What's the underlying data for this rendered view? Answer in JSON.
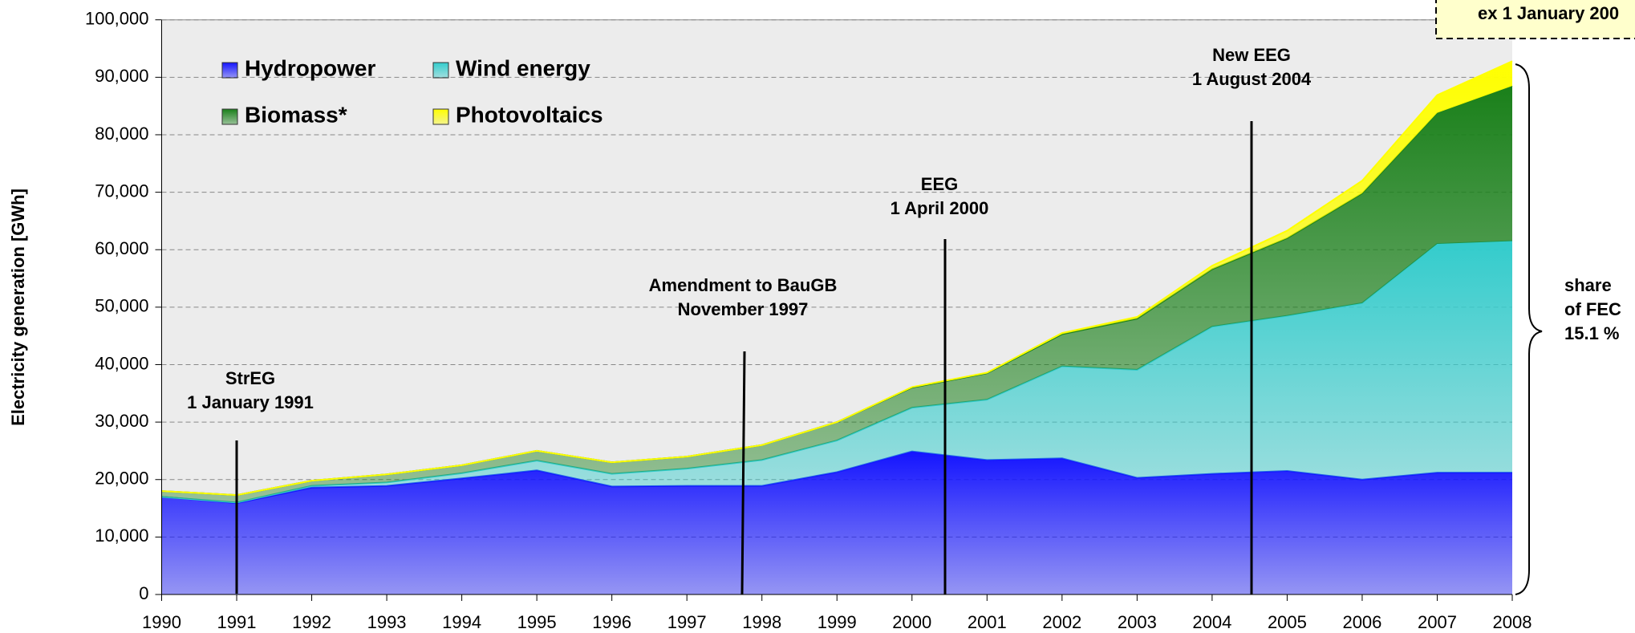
{
  "chart_data": {
    "type": "stacked-area",
    "y_label": "Electricity generation [GWh]",
    "x": [
      1990,
      1991,
      1992,
      1993,
      1994,
      1995,
      1996,
      1997,
      1998,
      1999,
      2000,
      2001,
      2002,
      2003,
      2004,
      2005,
      2006,
      2007,
      2008
    ],
    "xlim": [
      1990,
      2008
    ],
    "xticks": [
      1990,
      1991,
      1992,
      1993,
      1994,
      1995,
      1996,
      1997,
      1998,
      1999,
      2000,
      2001,
      2002,
      2003,
      2004,
      2005,
      2006,
      2007,
      2008
    ],
    "ylim": [
      0,
      100000
    ],
    "yticks": [
      {
        "value": 0,
        "label": "0"
      },
      {
        "value": 10000,
        "label": "10,000"
      },
      {
        "value": 20000,
        "label": "20,000"
      },
      {
        "value": 30000,
        "label": "30,000"
      },
      {
        "value": 40000,
        "label": "40,000"
      },
      {
        "value": 50000,
        "label": "50,000"
      },
      {
        "value": 60000,
        "label": "60,000"
      },
      {
        "value": 70000,
        "label": "70,000"
      },
      {
        "value": 80000,
        "label": "80,000"
      },
      {
        "value": 90000,
        "label": "90,000"
      },
      {
        "value": 100000,
        "label": "100,000"
      }
    ],
    "grid": true,
    "series": [
      {
        "name": "Hydropower",
        "color": "#1414ff",
        "values": [
          17000,
          15900,
          18600,
          18900,
          20200,
          21600,
          18800,
          18900,
          18900,
          21300,
          24900,
          23400,
          23700,
          20300,
          21000,
          21500,
          20000,
          21200,
          21200
        ]
      },
      {
        "name": "Wind energy",
        "color": "#33cccc",
        "values": [
          0,
          100,
          300,
          600,
          900,
          1700,
          2200,
          3000,
          4500,
          5500,
          7600,
          10500,
          16000,
          18800,
          25600,
          27000,
          30700,
          39800,
          40300
        ]
      },
      {
        "name": "Biomass*",
        "color": "#1a801a",
        "values": [
          1000,
          1300,
          900,
          1400,
          1400,
          1700,
          2000,
          2100,
          2600,
          3200,
          3500,
          4600,
          5600,
          8900,
          10000,
          13500,
          19100,
          22800,
          27000
        ]
      },
      {
        "name": "Photovoltaics",
        "color": "#ffff00",
        "values": [
          0,
          0,
          0,
          0,
          0,
          0,
          0,
          0,
          0,
          0,
          100,
          100,
          200,
          300,
          600,
          1300,
          2200,
          3100,
          4300
        ]
      }
    ],
    "annotations": [
      {
        "lines": [
          "StrEG",
          "1 January 1991"
        ]
      },
      {
        "lines": [
          "Amendment to BauGB",
          "November 1997"
        ]
      },
      {
        "lines": [
          "EEG",
          "1  April 2000"
        ]
      },
      {
        "lines": [
          "New EEG",
          "1 August 2004"
        ]
      }
    ],
    "box_note": "ex 1 January 200",
    "share_note": [
      "share",
      "of FEC",
      "15.1 %"
    ]
  }
}
